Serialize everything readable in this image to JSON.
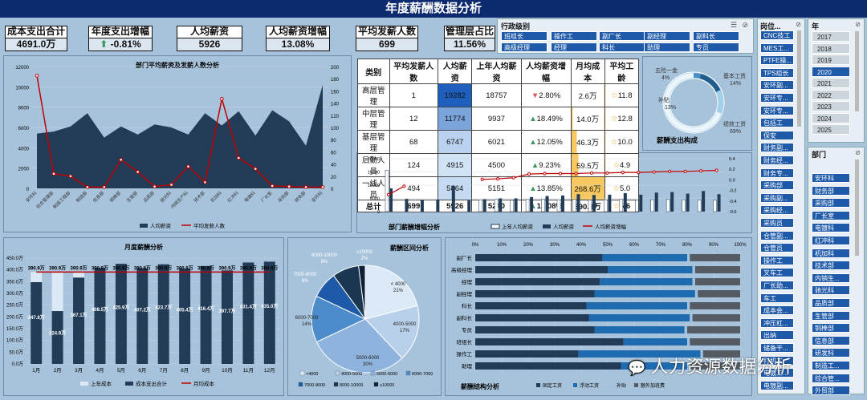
{
  "page_title": "年度薪酬数据分析",
  "kpis": [
    {
      "label": "成本支出合计",
      "value": "4691.0万"
    },
    {
      "label": "年度支出增幅",
      "value": "-0.81%"
    },
    {
      "label": "人均薪资",
      "value": "5926"
    },
    {
      "label": "人均薪资增幅",
      "value": "13.08%"
    },
    {
      "label": "平均发薪人数",
      "value": "699"
    },
    {
      "label": "管理层占比",
      "value": "11.56%"
    }
  ],
  "slicers": {
    "admin_level": {
      "title": "行政级别",
      "items": [
        "班组长",
        "操作工",
        "副厂长",
        "副经理",
        "副科长",
        "高级经理",
        "经理",
        "科长",
        "助理",
        "专员"
      ]
    },
    "position": {
      "title": "岗位...",
      "items": [
        "CNC技工",
        "MES工...",
        "PTFE操...",
        "TPS组长",
        "安环副...",
        "安环专...",
        "安环专...",
        "包括工",
        "保安",
        "财务副...",
        "财务经...",
        "财务专...",
        "采购部",
        "采购副...",
        "采购经...",
        "采购员",
        "仓管副...",
        "仓管员",
        "操作工",
        "叉车工",
        "厂长助...",
        "车工",
        "成本会...",
        "冲压杠...",
        "出纳",
        "储备干...",
        "打机工",
        "电镀工...",
        "电镀副..."
      ]
    },
    "year": {
      "title": "年",
      "items": [
        "2017",
        "2018",
        "2019",
        "2020",
        "2021",
        "2022",
        "2023",
        "2024",
        "2025"
      ],
      "selected": "2020"
    },
    "dept": {
      "title": "部门",
      "items": [
        "安环科",
        "财务部",
        "采购部",
        "厂长室",
        "电镀科",
        "红冲科",
        "机加科",
        "技术部",
        "内销生...",
        "驰光科",
        "品质部",
        "生管部",
        "铜棒部",
        "信息部",
        "研发科",
        "制造工...",
        "综合管...",
        "外贸部"
      ]
    }
  },
  "table": {
    "headers": [
      "类别",
      "平均发薪人数",
      "人均薪资",
      "上年人均薪资",
      "人均薪资增幅",
      "月均成本",
      "平均工龄"
    ],
    "rows": [
      {
        "cat": "高层管理",
        "n": "1",
        "avg": "19282",
        "prev": "18757",
        "growth": "2.80%",
        "cost": "2.6万",
        "age": "11.8"
      },
      {
        "cat": "中层管理",
        "n": "12",
        "avg": "11774",
        "prev": "9937",
        "growth": "18.49%",
        "cost": "14.0万",
        "age": "12.8"
      },
      {
        "cat": "基层管理",
        "n": "68",
        "avg": "6747",
        "prev": "6021",
        "growth": "12.05%",
        "cost": "46.3万",
        "age": "10.0"
      },
      {
        "cat": "后勤人员",
        "n": "124",
        "avg": "4915",
        "prev": "4500",
        "growth": "9.23%",
        "cost": "59.5万",
        "age": "4.9"
      },
      {
        "cat": "一线人员",
        "n": "494",
        "avg": "5864",
        "prev": "5151",
        "growth": "13.85%",
        "cost": "268.6万",
        "age": "5.0"
      }
    ],
    "total": {
      "cat": "总计",
      "n": "699",
      "avg": "5926",
      "prev": "5240",
      "growth": "13.08%",
      "cost": "390.9万",
      "age": "5.6"
    }
  },
  "chart_data": [
    {
      "type": "area",
      "title": "部门平均薪资及发薪人数分析",
      "categories": [
        "安环科",
        "综合管理部",
        "制造工程部",
        "制造部",
        "信息部",
        "铜棒部",
        "生管部",
        "品质部",
        "驰光科",
        "内销生产科",
        "技术部",
        "机加科",
        "红冲科",
        "电镀科",
        "厂长室",
        "采购部",
        "财务部",
        "安环科"
      ],
      "series": [
        {
          "name": "人均薪资",
          "values": [
            5400,
            5600,
            6100,
            7400,
            5000,
            6100,
            5300,
            6300,
            6000,
            5300,
            7400,
            6200,
            7600,
            5200,
            7700,
            6600,
            4200,
            10200
          ]
        },
        {
          "name": "平均发薪人数",
          "values": [
            185,
            24,
            20,
            2,
            2,
            47,
            27,
            3,
            6,
            36,
            10,
            147,
            50,
            32,
            4,
            3,
            2,
            2
          ]
        }
      ],
      "ylim": [
        0,
        12000
      ],
      "y2lim": [
        0,
        200
      ],
      "legend": "bottom"
    },
    {
      "type": "pie",
      "title": "薪酬支出构成",
      "labels": [
        "五险一金",
        "基本工资",
        "补贴",
        "绩效工资"
      ],
      "values": [
        4,
        14,
        13,
        69
      ],
      "display": [
        "4%",
        "14%",
        "13%",
        "69%"
      ]
    },
    {
      "type": "bar",
      "title": "部门薪酬增幅分析",
      "series": [
        {
          "name": "上年人均薪资",
          "values": [
            15700,
            0,
            0,
            0,
            0,
            0,
            4500,
            4600,
            4300,
            4600,
            4700,
            4500,
            4600,
            4400,
            4500,
            4700,
            4400,
            4500,
            4600,
            4500,
            4400,
            4300
          ]
        },
        {
          "name": "人均薪资",
          "values": [
            8800,
            4800,
            4500,
            4600,
            9800,
            4200,
            4700,
            5000,
            5000,
            5500,
            5900,
            6100,
            6600,
            6300,
            6400,
            7000,
            6400,
            7200,
            7400,
            6800,
            7800,
            6600
          ]
        },
        {
          "name": "人均薪资增幅",
          "values": [
            -0.28,
            -0.12,
            null,
            null,
            null,
            null,
            0.01,
            0.02,
            0.04,
            0.11,
            0.12,
            0.12,
            0.12,
            0.13,
            0.13,
            0.14,
            0.14,
            0.15,
            0.16,
            0.16,
            0.17,
            0.18
          ]
        }
      ],
      "ylim": [
        0,
        20000
      ],
      "y2lim": [
        -0.6,
        0.4
      ],
      "legend": "bottom"
    },
    {
      "type": "bar",
      "title": "月度薪酬分析",
      "categories": [
        "1月",
        "2月",
        "3月",
        "4月",
        "5月",
        "6月",
        "7月",
        "8月",
        "9月",
        "10月",
        "11月",
        "12月"
      ],
      "series": [
        {
          "name": "上年成本",
          "values": [
            390.9,
            390.9,
            390.9,
            390.9,
            390.9,
            390.9,
            390.9,
            390.9,
            390.9,
            390.9,
            390.9,
            390.9
          ]
        },
        {
          "name": "成本支出合计",
          "values": [
            347.8,
            224.9,
            367.1,
            408.5,
            425.9,
            407.2,
            423.7,
            405.4,
            416.4,
            397.7,
            431.4,
            435.0
          ]
        },
        {
          "name": "月均成本",
          "values": [
            390.9,
            390.9,
            390.9,
            390.9,
            390.9,
            390.9,
            390.9,
            390.9,
            390.9,
            390.9,
            390.9,
            390.9
          ]
        }
      ],
      "top_labels": [
        "390.9万",
        "390.9万",
        "390.9万",
        "390.9万",
        "390.9万",
        "390.9万",
        "390.9万",
        "390.9万",
        "390.9万",
        "390.9万",
        "390.9万",
        "390.9万"
      ],
      "bar_labels": [
        "347.8万",
        "224.9万",
        "367.1万",
        "408.5万",
        "425.9万",
        "407.2万",
        "423.7万",
        "405.4万",
        "416.4万",
        "397.7万",
        "431.4万",
        "435.0万"
      ],
      "ylim": [
        0,
        450
      ],
      "legend": "bottom"
    },
    {
      "type": "pie",
      "title": "薪酬区间分析",
      "labels": [
        "<4000",
        "4000-5000",
        "5000-6000",
        "6000-7000",
        "7000-8000",
        "8000-10000",
        "≥10000"
      ],
      "values": [
        21,
        17,
        30,
        14,
        8,
        8,
        2
      ],
      "display": [
        "< 4000\n21%",
        "4000-5000\n17%",
        "5000-6000\n30%",
        "6000-7000\n14%",
        "7000-8000\n8%",
        "8000-10000\n8%",
        "≥10000\n2%"
      ],
      "legend": "bottom"
    },
    {
      "type": "bar",
      "title": "薪酬结构分析",
      "stacked": "100%",
      "categories": [
        "副厂长",
        "高级经理",
        "经理",
        "副经理",
        "科长",
        "副科长",
        "专员",
        "班组长",
        "操作工",
        "助理"
      ],
      "series": [
        {
          "name": "固定工资",
          "values": [
            48,
            50,
            47,
            45,
            42,
            43,
            45,
            56,
            39,
            55
          ]
        },
        {
          "name": "浮动工资",
          "values": [
            32,
            32,
            35,
            38,
            38,
            38,
            34,
            24,
            46,
            25
          ]
        },
        {
          "name": "补贴",
          "values": [
            1,
            1,
            1,
            1,
            1,
            1,
            1,
            1,
            1,
            1
          ]
        },
        {
          "name": "额外加班费",
          "values": [
            19,
            17,
            17,
            16,
            19,
            18,
            20,
            19,
            14,
            19
          ]
        }
      ],
      "xticks": [
        "0%",
        "10%",
        "20%",
        "30%",
        "40%",
        "50%",
        "60%",
        "70%",
        "80%",
        "90%",
        "100%"
      ],
      "legend": "bottom"
    }
  ],
  "watermark": "人力资源数据分析"
}
